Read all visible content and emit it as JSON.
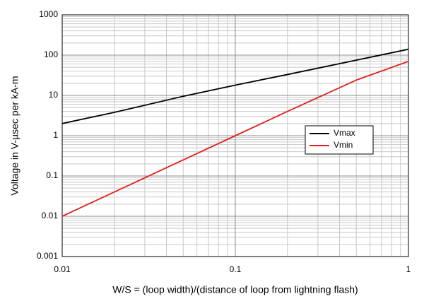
{
  "chart_data": {
    "type": "line",
    "x_label": "W/S = (loop width)/(distance of loop from lightning flash)",
    "y_label": "Voltage in V-µsec per kA-m",
    "x": [
      0.01,
      0.02,
      0.05,
      0.1,
      0.2,
      0.5,
      1
    ],
    "series": [
      {
        "name": "Vmax",
        "color": "#000000",
        "values": [
          2,
          3.8,
          9.5,
          18,
          33,
          75,
          140
        ]
      },
      {
        "name": "Vmin",
        "color": "#e0201b",
        "values": [
          0.01,
          0.04,
          0.25,
          1,
          4,
          24,
          70
        ]
      }
    ],
    "xlim": [
      0.01,
      1
    ],
    "ylim": [
      0.001,
      1000
    ],
    "xticks": [
      0.01,
      0.1,
      1
    ],
    "yticks": [
      0.001,
      0.01,
      0.1,
      1,
      10,
      100,
      1000
    ],
    "x_log": true,
    "y_log": true,
    "grid": true,
    "minor_grid": true,
    "legend_position": "right"
  }
}
